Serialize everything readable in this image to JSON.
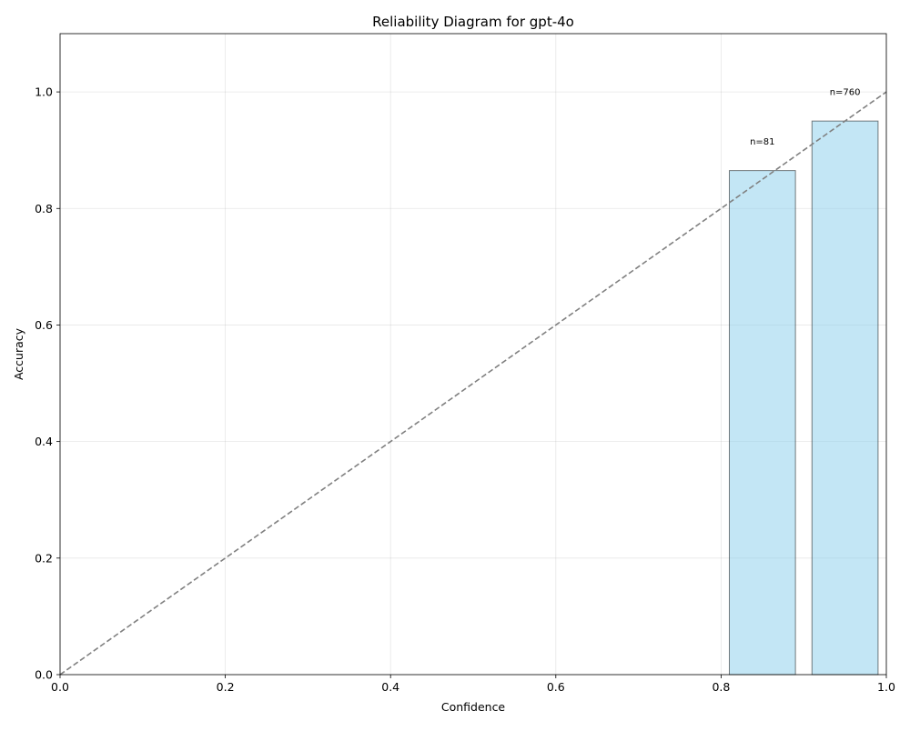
{
  "chart_data": {
    "type": "bar",
    "title": "Reliability Diagram for gpt-4o",
    "xlabel": "Confidence",
    "ylabel": "Accuracy",
    "xlim": [
      0.0,
      1.0
    ],
    "ylim": [
      0.0,
      1.1
    ],
    "xticks": [
      0.0,
      0.2,
      0.4,
      0.6,
      0.8,
      1.0
    ],
    "xtick_labels": [
      "0.0",
      "0.2",
      "0.4",
      "0.6",
      "0.8",
      "1.0"
    ],
    "yticks": [
      0.0,
      0.2,
      0.4,
      0.6,
      0.8,
      1.0
    ],
    "ytick_labels": [
      "0.0",
      "0.2",
      "0.4",
      "0.6",
      "0.8",
      "1.0"
    ],
    "grid": true,
    "bars": [
      {
        "bin_start": 0.8,
        "bin_end": 0.9,
        "accuracy": 0.865,
        "label": "n=81"
      },
      {
        "bin_start": 0.9,
        "bin_end": 1.0,
        "accuracy": 0.95,
        "label": "n=760"
      }
    ],
    "reference_line": {
      "x": [
        0.0,
        1.0
      ],
      "y": [
        0.0,
        1.0
      ],
      "style": "dashed"
    },
    "colors": {
      "bar_fill": "#87ceeb",
      "bar_edge": "#000000",
      "reference_line": "#808080"
    }
  }
}
